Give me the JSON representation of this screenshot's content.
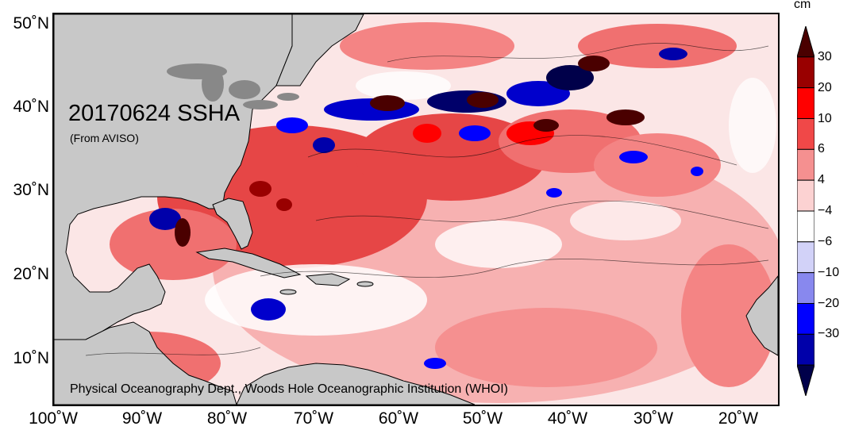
{
  "map": {
    "title": "20170624 SSHA",
    "subtitle": "(From AVISO)",
    "credit": "Physical Oceanography Dept., Woods Hole Oceanographic Institution (WHOI)",
    "latitude_labels": [
      "50˚N",
      "40˚N",
      "30˚N",
      "20˚N",
      "10˚N"
    ],
    "longitude_labels": [
      "100˚W",
      "90˚W",
      "80˚W",
      "70˚W",
      "60˚W",
      "50˚W",
      "40˚W",
      "30˚W",
      "20˚W"
    ]
  },
  "colorbar": {
    "unit": "cm",
    "labels": [
      "30",
      "20",
      "10",
      "6",
      "4",
      "−4",
      "−6",
      "−10",
      "−20",
      "−30"
    ],
    "colors": [
      "#4a0000",
      "#990000",
      "#ff0000",
      "#f04848",
      "#f59090",
      "#fcd2d2",
      "#ffffff",
      "#d2d2f8",
      "#8888ee",
      "#0000ff",
      "#0000aa",
      "#00004a"
    ]
  },
  "colors": {
    "land": "#c8c8c8",
    "ocean_base": "#fbe6e6",
    "frame": "#000000"
  }
}
